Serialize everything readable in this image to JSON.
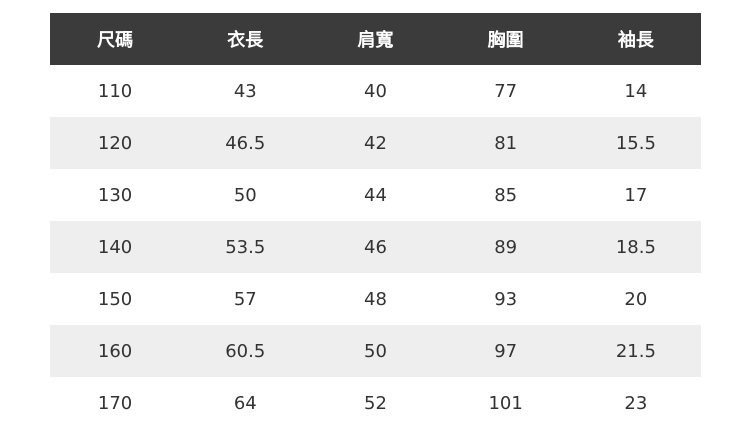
{
  "table": {
    "headers": [
      "尺碼",
      "衣長",
      "肩寬",
      "胸圍",
      "袖長"
    ],
    "rows": [
      [
        "110",
        "43",
        "40",
        "77",
        "14"
      ],
      [
        "120",
        "46.5",
        "42",
        "81",
        "15.5"
      ],
      [
        "130",
        "50",
        "44",
        "85",
        "17"
      ],
      [
        "140",
        "53.5",
        "46",
        "89",
        "18.5"
      ],
      [
        "150",
        "57",
        "48",
        "93",
        "20"
      ],
      [
        "160",
        "60.5",
        "50",
        "97",
        "21.5"
      ],
      [
        "170",
        "64",
        "52",
        "101",
        "23"
      ]
    ]
  },
  "colors": {
    "header_bg": "#3a3b3a",
    "header_text": "#ffffff",
    "stripe_bg": "#eeeeee",
    "cell_text": "#333333"
  }
}
